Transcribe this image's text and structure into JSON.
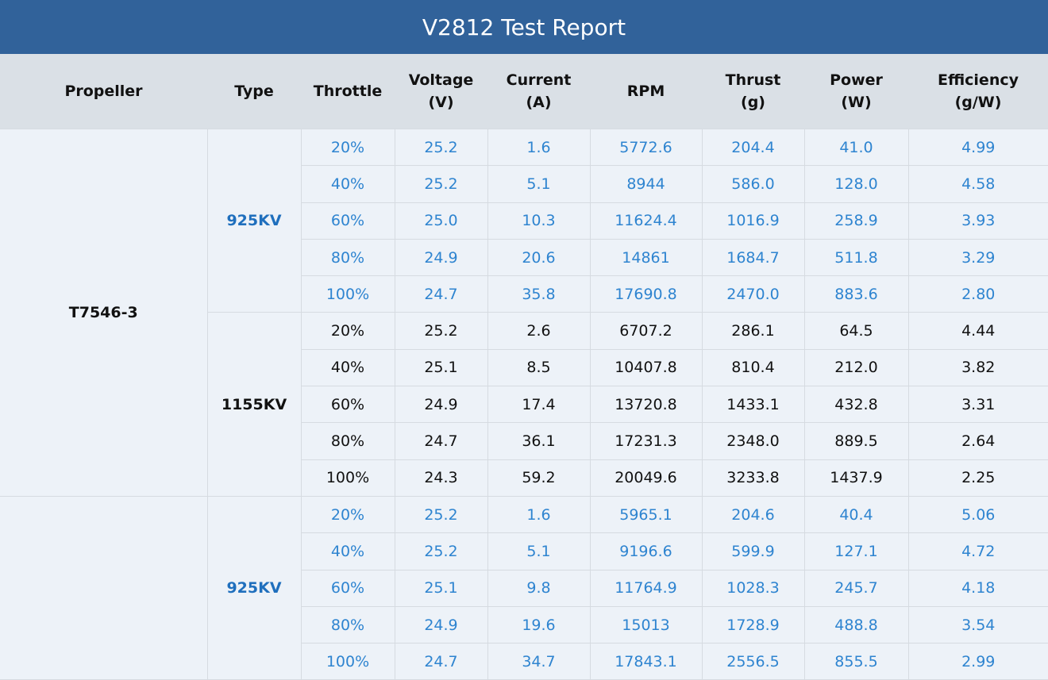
{
  "title": "V2812 Test Report",
  "columns": [
    "Propeller",
    "Type",
    "Throttle",
    "Voltage\n(V)",
    "Current\n(A)",
    "RPM",
    "Thrust\n(g)",
    "Power\n(W)",
    "Efficiency\n(g/W)"
  ],
  "colors": {
    "header_bg": "#31629a",
    "blue_text": "#2e84d0",
    "type_blue": "#1f6fbd",
    "black_text": "#111111"
  },
  "groups": [
    {
      "propeller": "T7546-3",
      "types": [
        {
          "type": "925KV",
          "style": "blue",
          "rows": [
            [
              "20%",
              "25.2",
              "1.6",
              "5772.6",
              "204.4",
              "41.0",
              "4.99"
            ],
            [
              "40%",
              "25.2",
              "5.1",
              "8944",
              "586.0",
              "128.0",
              "4.58"
            ],
            [
              "60%",
              "25.0",
              "10.3",
              "11624.4",
              "1016.9",
              "258.9",
              "3.93"
            ],
            [
              "80%",
              "24.9",
              "20.6",
              "14861",
              "1684.7",
              "511.8",
              "3.29"
            ],
            [
              "100%",
              "24.7",
              "35.8",
              "17690.8",
              "2470.0",
              "883.6",
              "2.80"
            ]
          ]
        },
        {
          "type": "1155KV",
          "style": "black",
          "rows": [
            [
              "20%",
              "25.2",
              "2.6",
              "6707.2",
              "286.1",
              "64.5",
              "4.44"
            ],
            [
              "40%",
              "25.1",
              "8.5",
              "10407.8",
              "810.4",
              "212.0",
              "3.82"
            ],
            [
              "60%",
              "24.9",
              "17.4",
              "13720.8",
              "1433.1",
              "432.8",
              "3.31"
            ],
            [
              "80%",
              "24.7",
              "36.1",
              "17231.3",
              "2348.0",
              "889.5",
              "2.64"
            ],
            [
              "100%",
              "24.3",
              "59.2",
              "20049.6",
              "3233.8",
              "1437.9",
              "2.25"
            ]
          ]
        }
      ]
    },
    {
      "propeller": "",
      "types": [
        {
          "type": "925KV",
          "style": "blue",
          "rows": [
            [
              "20%",
              "25.2",
              "1.6",
              "5965.1",
              "204.6",
              "40.4",
              "5.06"
            ],
            [
              "40%",
              "25.2",
              "5.1",
              "9196.6",
              "599.9",
              "127.1",
              "4.72"
            ],
            [
              "60%",
              "25.1",
              "9.8",
              "11764.9",
              "1028.3",
              "245.7",
              "4.18"
            ],
            [
              "80%",
              "24.9",
              "19.6",
              "15013",
              "1728.9",
              "488.8",
              "3.54"
            ],
            [
              "100%",
              "24.7",
              "34.7",
              "17843.1",
              "2556.5",
              "855.5",
              "2.99"
            ]
          ]
        }
      ]
    }
  ]
}
